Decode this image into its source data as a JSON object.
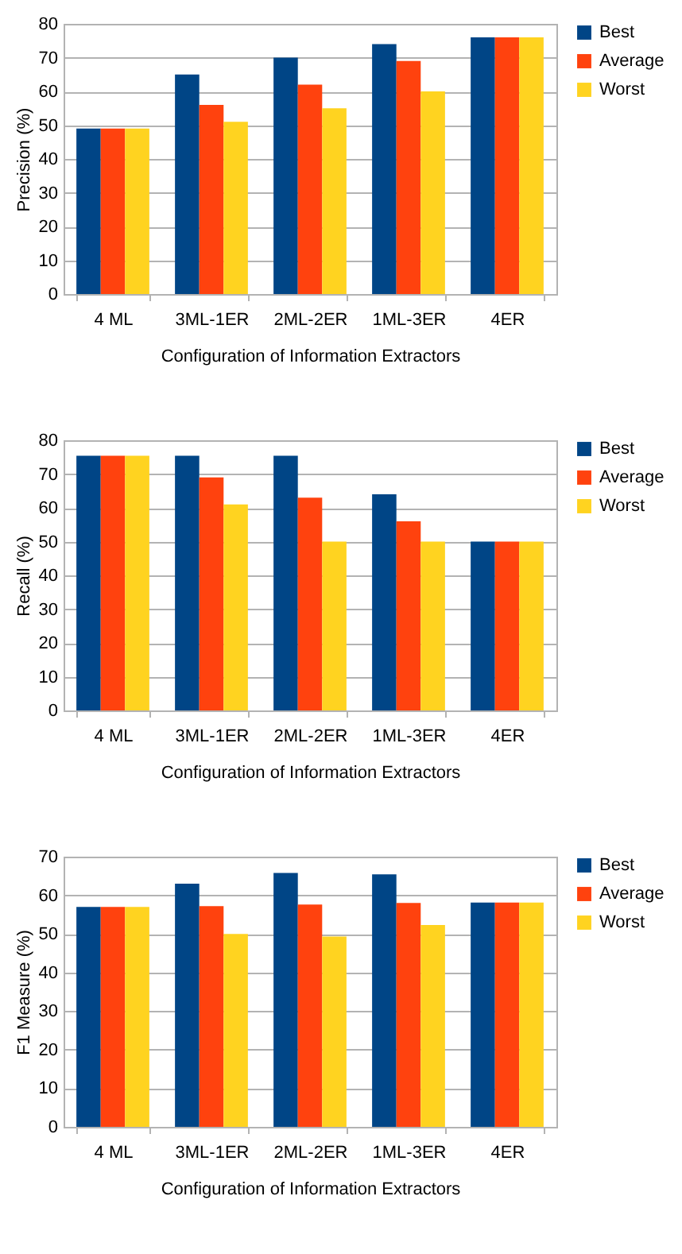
{
  "chart_data": [
    {
      "type": "bar",
      "ylabel": "Precision (%)",
      "xlabel": "Configuration of Information Extractors",
      "categories": [
        "4 ML",
        "3ML-1ER",
        "2ML-2ER",
        "1ML-3ER",
        "4ER"
      ],
      "series": [
        {
          "name": "Best",
          "color": "#004586",
          "values": [
            49,
            65,
            70,
            74,
            76
          ]
        },
        {
          "name": "Average",
          "color": "#ff420e",
          "values": [
            49,
            56,
            62,
            69,
            76
          ]
        },
        {
          "name": "Worst",
          "color": "#ffd320",
          "values": [
            49,
            51,
            55,
            60,
            76
          ]
        }
      ],
      "ylim": [
        0,
        80
      ],
      "yticks": [
        0,
        10,
        20,
        30,
        40,
        50,
        60,
        70,
        80
      ],
      "grid": "y",
      "legend": "right"
    },
    {
      "type": "bar",
      "ylabel": "Recall (%)",
      "xlabel": "Configuration of Information Extractors",
      "categories": [
        "4 ML",
        "3ML-1ER",
        "2ML-2ER",
        "1ML-3ER",
        "4ER"
      ],
      "series": [
        {
          "name": "Best",
          "color": "#004586",
          "values": [
            75.4,
            75.4,
            75.4,
            64,
            50
          ]
        },
        {
          "name": "Average",
          "color": "#ff420e",
          "values": [
            75.4,
            69,
            63,
            56,
            50
          ]
        },
        {
          "name": "Worst",
          "color": "#ffd320",
          "values": [
            75.4,
            61,
            50,
            50,
            50
          ]
        }
      ],
      "ylim": [
        0,
        80
      ],
      "yticks": [
        0,
        10,
        20,
        30,
        40,
        50,
        60,
        70,
        80
      ],
      "grid": "y",
      "legend": "right"
    },
    {
      "type": "bar",
      "ylabel": "F1 Measure (%)",
      "xlabel": "Configuration of Information Extractors",
      "categories": [
        "4 ML",
        "3ML-1ER",
        "2ML-2ER",
        "1ML-3ER",
        "4ER"
      ],
      "series": [
        {
          "name": "Best",
          "color": "#004586",
          "values": [
            57,
            63,
            65.8,
            65.4,
            58.1
          ]
        },
        {
          "name": "Average",
          "color": "#ff420e",
          "values": [
            57,
            57.2,
            57.6,
            58,
            58.1
          ]
        },
        {
          "name": "Worst",
          "color": "#ffd320",
          "values": [
            57,
            50,
            49.3,
            52.3,
            58.1
          ]
        }
      ],
      "ylim": [
        0,
        70
      ],
      "yticks": [
        0,
        10,
        20,
        30,
        40,
        50,
        60,
        70
      ],
      "grid": "y",
      "legend": "right"
    }
  ]
}
